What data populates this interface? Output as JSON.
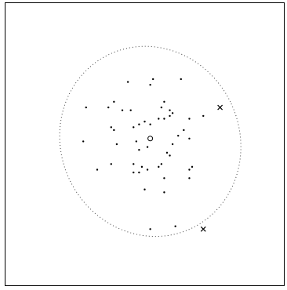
{
  "chart_data": {
    "type": "scatter",
    "title": "",
    "xlabel": "",
    "ylabel": "",
    "xlim": [
      0,
      100
    ],
    "ylim": [
      0,
      100
    ],
    "grid": false,
    "series": [
      {
        "marker": "dot",
        "points": [
          [
            44,
            72
          ],
          [
            53,
            73
          ],
          [
            52,
            71
          ],
          [
            63,
            73
          ],
          [
            29,
            63
          ],
          [
            37,
            63
          ],
          [
            39,
            65
          ],
          [
            42,
            62
          ],
          [
            45,
            62
          ],
          [
            57,
            65
          ],
          [
            56,
            63
          ],
          [
            59,
            62
          ],
          [
            60,
            61
          ],
          [
            55,
            59
          ],
          [
            57,
            59
          ],
          [
            59,
            60
          ],
          [
            71,
            60
          ],
          [
            66,
            59
          ],
          [
            48,
            57
          ],
          [
            50,
            58
          ],
          [
            52,
            57
          ],
          [
            46,
            56
          ],
          [
            38,
            56
          ],
          [
            39,
            55
          ],
          [
            64,
            55
          ],
          [
            62,
            53
          ],
          [
            28,
            51
          ],
          [
            40,
            50
          ],
          [
            47,
            51
          ],
          [
            60,
            50
          ],
          [
            66,
            52
          ],
          [
            51,
            49
          ],
          [
            48,
            48
          ],
          [
            58,
            47
          ],
          [
            59,
            46
          ],
          [
            56,
            43
          ],
          [
            55,
            42
          ],
          [
            38,
            43
          ],
          [
            46,
            43
          ],
          [
            49,
            42
          ],
          [
            33,
            41
          ],
          [
            46,
            40
          ],
          [
            48,
            40
          ],
          [
            51,
            41
          ],
          [
            67,
            42
          ],
          [
            66,
            41
          ],
          [
            57,
            38
          ],
          [
            66,
            38
          ],
          [
            50,
            34
          ],
          [
            57,
            33
          ],
          [
            52,
            20
          ],
          [
            61,
            21
          ]
        ]
      },
      {
        "marker": "circle",
        "points": [
          [
            52,
            52
          ]
        ]
      },
      {
        "marker": "cross",
        "points": [
          [
            77,
            63
          ],
          [
            71,
            20
          ]
        ]
      }
    ],
    "ellipse": {
      "center": [
        52,
        51
      ],
      "rx": 32,
      "ry": 34,
      "rotation_deg": -25,
      "style": "dotted"
    }
  }
}
